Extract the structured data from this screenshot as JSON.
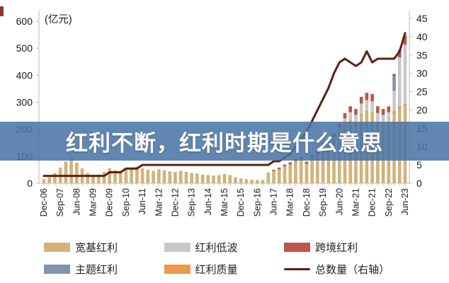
{
  "page": {
    "background": "#ffffff",
    "bullet_color": "#99352b"
  },
  "overlay": {
    "title": "红利不断，红利时期是什么意思",
    "background": "#4a74a6",
    "opacity": 0.87,
    "text_color": "#ffffff"
  },
  "chart_data": {
    "type": "combo-stacked-bar-line",
    "unit_label": "(亿元)",
    "left_axis": {
      "min": 0,
      "max": 600,
      "step": 100,
      "tick_labels": [
        "0",
        "100",
        "200",
        "300",
        "400",
        "500",
        "600"
      ]
    },
    "right_axis": {
      "min": 0,
      "max": 45,
      "step": 5,
      "tick_labels": [
        "0",
        "5",
        "10",
        "15",
        "20",
        "25",
        "30",
        "35",
        "40",
        "45"
      ]
    },
    "x_label_every_n": 3,
    "x_labels_shown": [
      "Dec-06",
      "Sep-07",
      "Jun-08",
      "Mar-09",
      "Dec-09",
      "Sep-10",
      "Jun-11",
      "Mar-12",
      "Dec-12",
      "Sep-13",
      "Jun-14",
      "Mar-15",
      "Dec-15",
      "Sep-16",
      "Jun-17",
      "Mar-18",
      "Dec-18",
      "Sep-19",
      "Jun-20",
      "Mar-21",
      "Dec-21",
      "Sep-22",
      "Jun-23"
    ],
    "categories": [
      "Dec-06",
      "Mar-07",
      "Jun-07",
      "Sep-07",
      "Dec-07",
      "Mar-08",
      "Jun-08",
      "Sep-08",
      "Dec-08",
      "Mar-09",
      "Jun-09",
      "Sep-09",
      "Dec-09",
      "Mar-10",
      "Jun-10",
      "Sep-10",
      "Dec-10",
      "Mar-11",
      "Jun-11",
      "Sep-11",
      "Dec-11",
      "Mar-12",
      "Jun-12",
      "Sep-12",
      "Dec-12",
      "Mar-13",
      "Jun-13",
      "Sep-13",
      "Dec-13",
      "Mar-14",
      "Jun-14",
      "Sep-14",
      "Dec-14",
      "Mar-15",
      "Jun-15",
      "Sep-15",
      "Dec-15",
      "Mar-16",
      "Jun-16",
      "Sep-16",
      "Dec-16",
      "Mar-17",
      "Jun-17",
      "Sep-17",
      "Dec-17",
      "Mar-18",
      "Jun-18",
      "Sep-18",
      "Dec-18",
      "Mar-19",
      "Jun-19",
      "Sep-19",
      "Dec-19",
      "Mar-20",
      "Jun-20",
      "Sep-20",
      "Dec-20",
      "Mar-21",
      "Jun-21",
      "Sep-21",
      "Dec-21",
      "Mar-22",
      "Jun-22",
      "Sep-22",
      "Dec-22",
      "Mar-23",
      "Jun-23"
    ],
    "bar_series": [
      {
        "name": "宽基红利",
        "color": "#d2b279",
        "values": [
          15,
          22,
          38,
          58,
          80,
          95,
          76,
          55,
          38,
          28,
          32,
          42,
          55,
          48,
          44,
          52,
          58,
          62,
          55,
          50,
          46,
          52,
          48,
          44,
          42,
          46,
          42,
          38,
          36,
          32,
          30,
          28,
          30,
          34,
          30,
          22,
          18,
          15,
          13,
          12,
          12,
          40,
          46,
          52,
          62,
          70,
          82,
          90,
          72,
          95,
          108,
          130,
          140,
          155,
          185,
          215,
          235,
          225,
          260,
          270,
          265,
          228,
          215,
          220,
          255,
          278,
          285
        ]
      },
      {
        "name": "红利质量",
        "color": "#e8994e",
        "values": [
          0,
          0,
          0,
          0,
          0,
          0,
          0,
          0,
          0,
          0,
          0,
          0,
          0,
          0,
          0,
          0,
          0,
          0,
          0,
          0,
          0,
          0,
          0,
          0,
          0,
          0,
          0,
          0,
          0,
          0,
          0,
          0,
          0,
          0,
          0,
          0,
          0,
          0,
          0,
          0,
          0,
          0,
          0,
          0,
          0,
          0,
          0,
          0,
          0,
          0,
          0,
          0,
          0,
          0,
          0,
          0,
          0,
          0,
          0,
          0,
          0,
          0,
          3,
          5,
          12,
          8,
          10
        ]
      },
      {
        "name": "红利低波",
        "color": "#c8c8ca",
        "values": [
          0,
          0,
          0,
          0,
          0,
          0,
          0,
          0,
          0,
          0,
          0,
          0,
          0,
          0,
          0,
          0,
          0,
          0,
          0,
          0,
          0,
          0,
          0,
          0,
          0,
          0,
          0,
          0,
          0,
          0,
          0,
          0,
          0,
          0,
          0,
          0,
          0,
          0,
          0,
          0,
          0,
          0,
          0,
          0,
          0,
          0,
          0,
          0,
          0,
          0,
          0,
          10,
          12,
          15,
          20,
          25,
          28,
          28,
          35,
          38,
          38,
          32,
          35,
          38,
          75,
          180,
          218
        ]
      },
      {
        "name": "主题红利",
        "color": "#8092ad",
        "values": [
          0,
          0,
          0,
          0,
          0,
          0,
          0,
          0,
          0,
          0,
          0,
          0,
          0,
          0,
          0,
          0,
          0,
          0,
          0,
          0,
          0,
          0,
          0,
          0,
          0,
          0,
          0,
          0,
          0,
          0,
          0,
          0,
          0,
          0,
          0,
          0,
          0,
          0,
          0,
          0,
          0,
          0,
          0,
          0,
          0,
          0,
          0,
          0,
          0,
          0,
          0,
          0,
          0,
          0,
          0,
          0,
          0,
          0,
          0,
          0,
          0,
          0,
          0,
          0,
          55,
          0,
          0
        ]
      },
      {
        "name": "跨境红利",
        "color": "#b8584a",
        "values": [
          0,
          0,
          0,
          0,
          0,
          0,
          0,
          0,
          0,
          0,
          0,
          0,
          0,
          0,
          0,
          0,
          0,
          0,
          0,
          0,
          0,
          0,
          0,
          0,
          0,
          0,
          0,
          0,
          0,
          0,
          0,
          0,
          0,
          0,
          0,
          0,
          0,
          0,
          0,
          0,
          0,
          0,
          4,
          6,
          7,
          7,
          8,
          8,
          8,
          10,
          12,
          10,
          13,
          15,
          15,
          20,
          22,
          22,
          25,
          27,
          27,
          25,
          22,
          22,
          8,
          29,
          34
        ]
      }
    ],
    "line_series": {
      "name": "总数量（右轴）",
      "color": "#5a2014",
      "axis": "right",
      "values": [
        2,
        2,
        2,
        2,
        2,
        2,
        2,
        2,
        2,
        2,
        2,
        2,
        3,
        3,
        3,
        4,
        4,
        4,
        5,
        5,
        5,
        5,
        5,
        5,
        5,
        5,
        5,
        5,
        5,
        5,
        5,
        5,
        5,
        5,
        5,
        5,
        5,
        5,
        5,
        5,
        5,
        5,
        6,
        6,
        7,
        8,
        10,
        12,
        14,
        17,
        20,
        23,
        26,
        30,
        33,
        34,
        33,
        32,
        33,
        36,
        33,
        34,
        34,
        34,
        34,
        36,
        41
      ]
    },
    "legend": {
      "rows": [
        [
          {
            "label": "宽基红利",
            "swatch": "bar",
            "color": "#d2b279"
          },
          {
            "label": "红利低波",
            "swatch": "bar",
            "color": "#c8c8ca"
          },
          {
            "label": "跨境红利",
            "swatch": "bar",
            "color": "#b8584a"
          }
        ],
        [
          {
            "label": "主题红利",
            "swatch": "bar",
            "color": "#8092ad"
          },
          {
            "label": "红利质量",
            "swatch": "bar",
            "color": "#e8994e"
          },
          {
            "label": "总数量（右轴）",
            "swatch": "line",
            "color": "#5a2014"
          }
        ]
      ]
    },
    "axis_text_color": "#1a1a1a",
    "axis_line_color": "#bcbcbc"
  }
}
